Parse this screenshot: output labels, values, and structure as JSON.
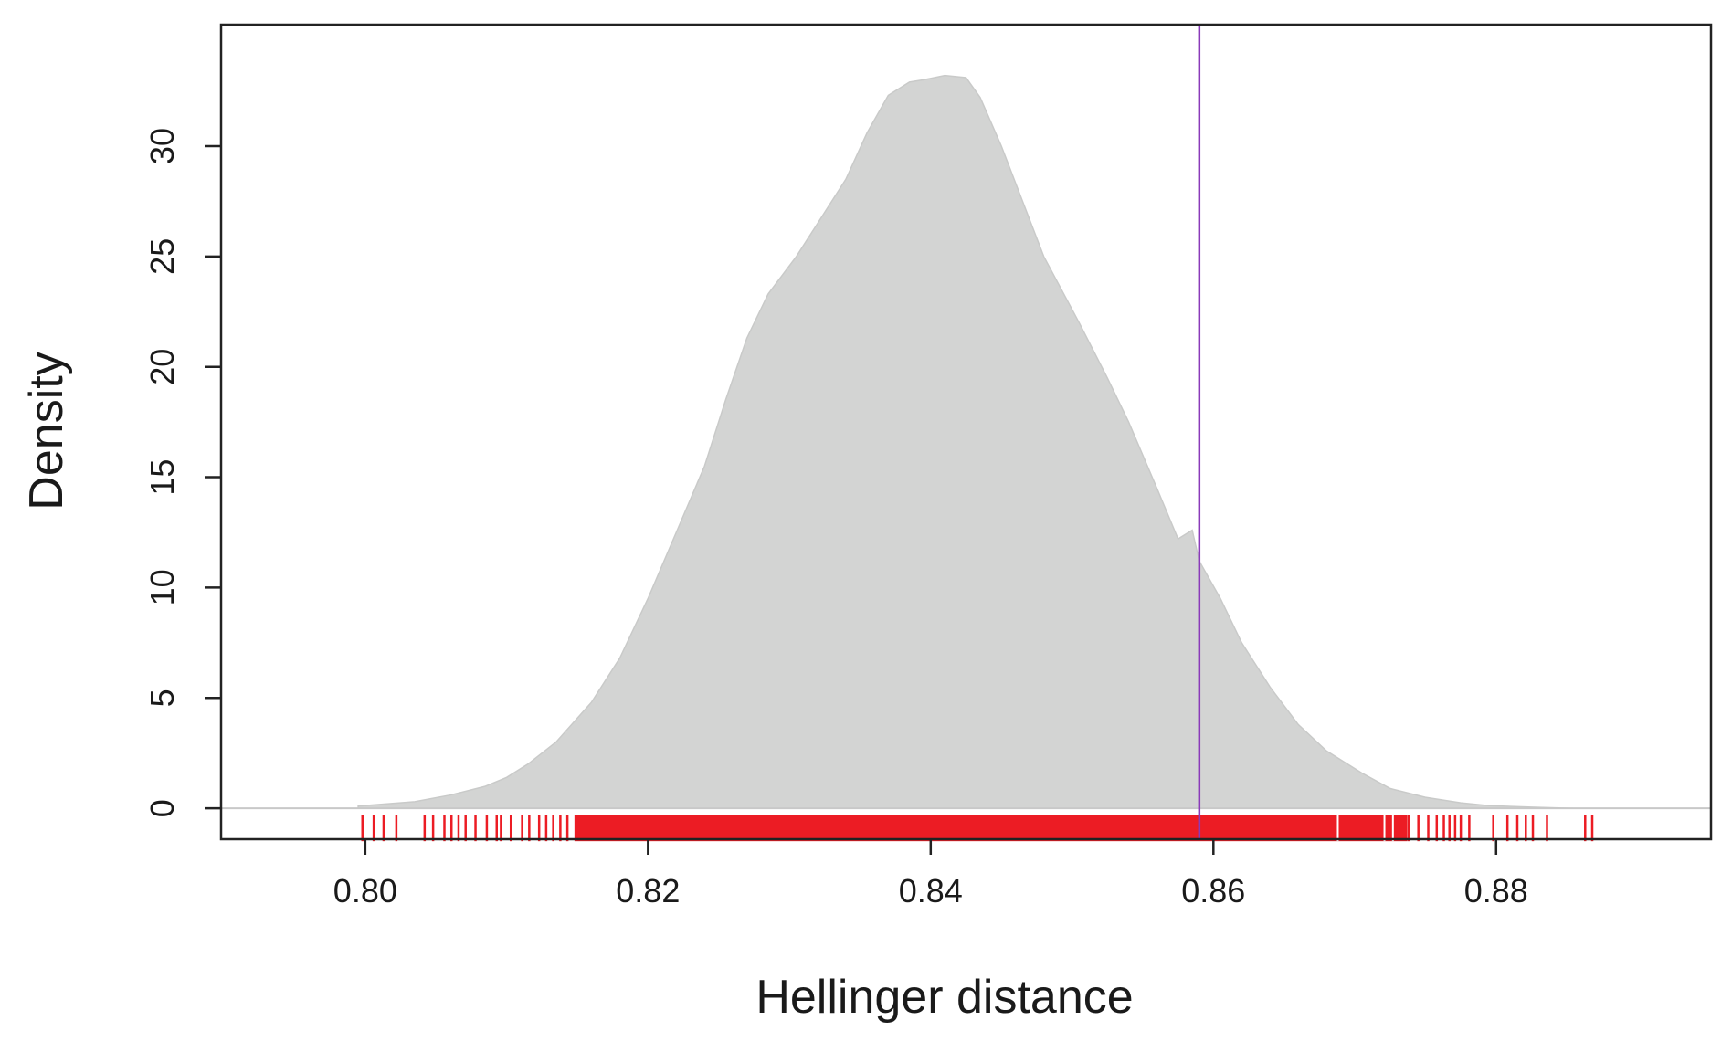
{
  "chart_data": {
    "type": "area",
    "title": "",
    "xlabel": "Hellinger distance",
    "ylabel": "Density",
    "xlim": [
      0.7898,
      0.8952
    ],
    "ylim": [
      -1.4,
      35.5
    ],
    "x_ticks": [
      0.8,
      0.82,
      0.84,
      0.86,
      0.88
    ],
    "x_tick_labels": [
      "0.80",
      "0.82",
      "0.84",
      "0.86",
      "0.88"
    ],
    "y_ticks": [
      0,
      5,
      10,
      15,
      20,
      25,
      30
    ],
    "y_tick_labels": [
      "0",
      "5",
      "10",
      "15",
      "20",
      "25",
      "30"
    ],
    "grid": false,
    "series": [
      {
        "kind": "density",
        "color": "#d3d4d3",
        "x": [
          0.7995,
          0.8035,
          0.806,
          0.8085,
          0.81,
          0.8115,
          0.8135,
          0.816,
          0.818,
          0.82,
          0.822,
          0.824,
          0.8255,
          0.827,
          0.8285,
          0.8305,
          0.832,
          0.834,
          0.8355,
          0.837,
          0.8385,
          0.8395,
          0.841,
          0.8425,
          0.8435,
          0.845,
          0.8465,
          0.848,
          0.8505,
          0.8525,
          0.854,
          0.856,
          0.8575,
          0.8585,
          0.859,
          0.8605,
          0.862,
          0.864,
          0.866,
          0.868,
          0.8705,
          0.8725,
          0.875,
          0.8775,
          0.8795,
          0.8825,
          0.8855
        ],
        "y": [
          0.1,
          0.3,
          0.6,
          1.0,
          1.4,
          2.0,
          3.0,
          4.8,
          6.8,
          9.5,
          12.5,
          15.5,
          18.5,
          21.3,
          23.3,
          25.0,
          26.5,
          28.5,
          30.6,
          32.3,
          32.9,
          33.0,
          33.2,
          33.1,
          32.2,
          30.0,
          27.5,
          25.0,
          22.0,
          19.5,
          17.5,
          14.5,
          12.2,
          12.6,
          11.2,
          9.5,
          7.5,
          5.5,
          3.8,
          2.6,
          1.6,
          0.9,
          0.5,
          0.25,
          0.12,
          0.05,
          0.0
        ]
      },
      {
        "kind": "reference-line",
        "color": "#8a3ab9",
        "x": 0.859
      },
      {
        "kind": "rug",
        "color": "#ec1c24",
        "dense_range": [
          0.8148,
          0.8737
        ],
        "gaps_inside": [
          0.8688,
          0.8721,
          0.8727
        ],
        "sparse_ticks": [
          0.7998,
          0.8006,
          0.8013,
          0.8022,
          0.8042,
          0.8048,
          0.8056,
          0.8061,
          0.8066,
          0.8071,
          0.8078,
          0.8086,
          0.8093,
          0.8096,
          0.8103,
          0.8111,
          0.8116,
          0.8123,
          0.8128,
          0.8133,
          0.8138,
          0.8143,
          0.8738,
          0.8745,
          0.8752,
          0.8758,
          0.8763,
          0.8767,
          0.8771,
          0.8775,
          0.8781,
          0.8798,
          0.8808,
          0.8815,
          0.8821,
          0.8826,
          0.8836,
          0.8863,
          0.8868
        ]
      }
    ]
  }
}
